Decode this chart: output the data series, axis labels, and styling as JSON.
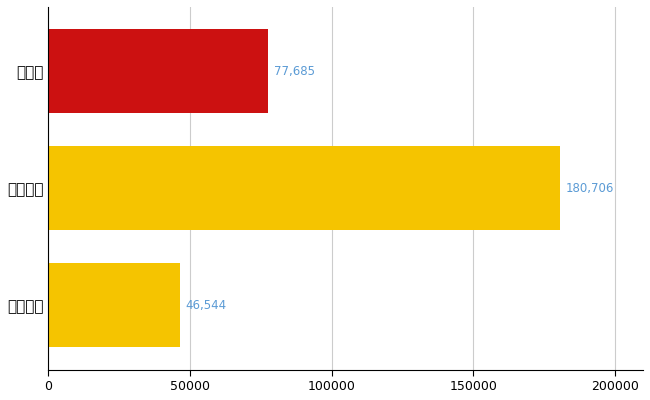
{
  "categories": [
    "全国平均",
    "全国最大",
    "千葉県"
  ],
  "values": [
    46544,
    180706,
    77685
  ],
  "bar_colors": [
    "#F5C400",
    "#F5C400",
    "#CC1111"
  ],
  "value_labels": [
    "46,544",
    "180,706",
    "77,685"
  ],
  "xlim": [
    0,
    210000
  ],
  "xticks": [
    0,
    50000,
    100000,
    150000,
    200000
  ],
  "xtick_labels": [
    "0",
    "50000",
    "100000",
    "150000",
    "200000"
  ],
  "grid_color": "#CCCCCC",
  "background_color": "#FFFFFF",
  "label_color": "#5B9BD5",
  "tick_label_color": "#F5A500",
  "bar_height": 0.72,
  "figsize": [
    6.5,
    4.0
  ],
  "dpi": 100
}
